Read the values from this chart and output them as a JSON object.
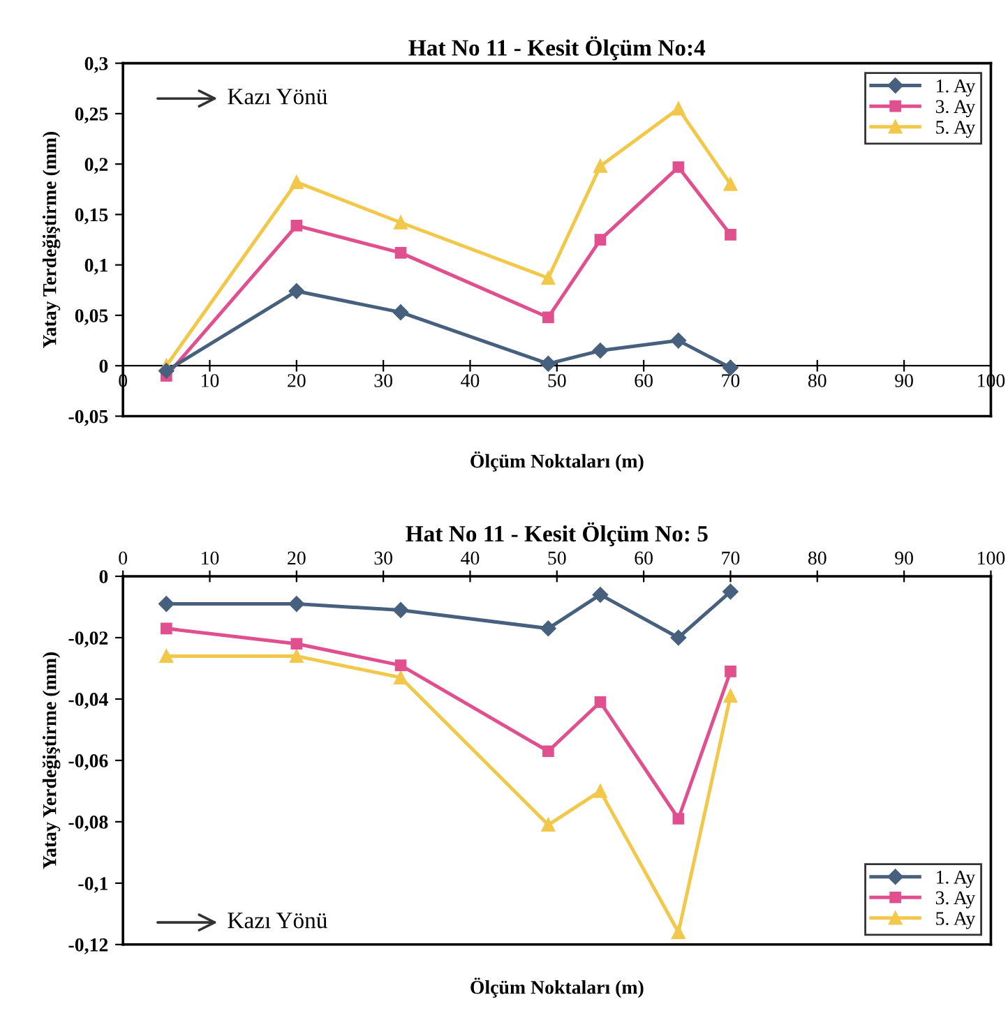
{
  "chart_data": [
    {
      "type": "line",
      "title": "Hat No 11 - Kesit Ölçüm No:4",
      "xlabel": "Ölçüm Noktaları (m)",
      "ylabel": "Yatay Terdeğiştirme (mm)",
      "annotations": [
        "Kazı Yönü"
      ],
      "x": [
        5,
        20,
        32,
        49,
        55,
        64,
        70
      ],
      "series": [
        {
          "name": "1. Ay",
          "color": "#46607e",
          "marker": "diamond",
          "values": [
            -0.005,
            0.074,
            0.053,
            0.002,
            0.015,
            0.025,
            -0.002
          ]
        },
        {
          "name": "3. Ay",
          "color": "#e0508f",
          "marker": "square",
          "values": [
            -0.01,
            0.139,
            0.112,
            0.048,
            0.125,
            0.197,
            0.13
          ]
        },
        {
          "name": "5. Ay",
          "color": "#f2c84b",
          "marker": "triangle",
          "values": [
            0.0,
            0.182,
            0.142,
            0.087,
            0.198,
            0.255,
            0.18
          ]
        }
      ],
      "xlim": [
        0,
        100
      ],
      "xticks": [
        0,
        10,
        20,
        30,
        40,
        50,
        60,
        70,
        80,
        90,
        100
      ],
      "ylim": [
        -0.05,
        0.3
      ],
      "yticks": [
        {
          "value": -0.05,
          "label": "-0,05"
        },
        {
          "value": 0,
          "label": "0"
        },
        {
          "value": 0.05,
          "label": "0,05"
        },
        {
          "value": 0.1,
          "label": "0,1"
        },
        {
          "value": 0.15,
          "label": "0,15"
        },
        {
          "value": 0.2,
          "label": "0,2"
        },
        {
          "value": 0.25,
          "label": "0,25"
        },
        {
          "value": 0.3,
          "label": "0,3"
        }
      ],
      "grid": false,
      "legend": "top right"
    },
    {
      "type": "line",
      "title": "Hat No 11 - Kesit Ölçüm No: 5",
      "xlabel": "Ölçüm Noktaları (m)",
      "ylabel": "Yatay Yerdeğiştirme (mm)",
      "annotations": [
        "Kazı Yönü"
      ],
      "x": [
        5,
        20,
        32,
        49,
        55,
        64,
        70
      ],
      "series": [
        {
          "name": "1. Ay",
          "color": "#46607e",
          "marker": "diamond",
          "values": [
            -0.009,
            -0.009,
            -0.011,
            -0.017,
            -0.006,
            -0.02,
            -0.005
          ]
        },
        {
          "name": "3. Ay",
          "color": "#e0508f",
          "marker": "square",
          "values": [
            -0.017,
            -0.022,
            -0.029,
            -0.057,
            -0.041,
            -0.079,
            -0.031
          ]
        },
        {
          "name": "5. Ay",
          "color": "#f2c84b",
          "marker": "triangle",
          "values": [
            -0.026,
            -0.026,
            -0.033,
            -0.081,
            -0.07,
            -0.116,
            -0.039
          ]
        }
      ],
      "xlim": [
        0,
        100
      ],
      "xticks": [
        0,
        10,
        20,
        30,
        40,
        50,
        60,
        70,
        80,
        90,
        100
      ],
      "ylim": [
        -0.12,
        0
      ],
      "yticks": [
        {
          "value": -0.12,
          "label": "-0,12"
        },
        {
          "value": -0.1,
          "label": "-0,1"
        },
        {
          "value": -0.08,
          "label": "-0,08"
        },
        {
          "value": -0.06,
          "label": "-0,06"
        },
        {
          "value": -0.04,
          "label": "-0,04"
        },
        {
          "value": -0.02,
          "label": "-0,02"
        },
        {
          "value": 0,
          "label": "0"
        }
      ],
      "grid": false,
      "legend": "bottom right"
    }
  ]
}
